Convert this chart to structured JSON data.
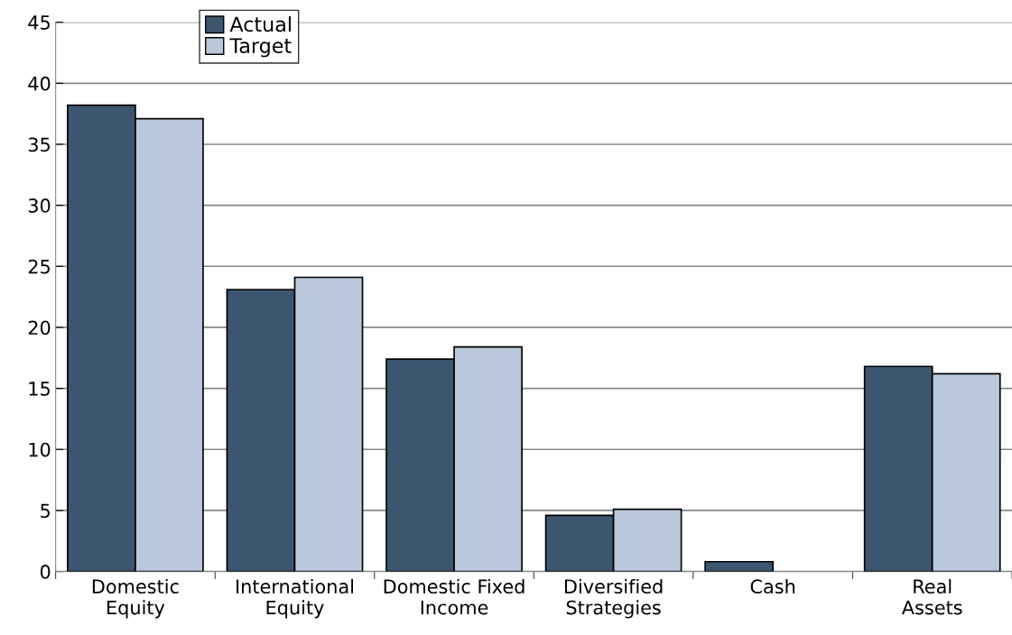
{
  "chart_data": {
    "type": "bar",
    "categories": [
      "Domestic\nEquity",
      "International\nEquity",
      "Domestic Fixed\nIncome",
      "Diversified\nStrategies",
      "Cash",
      "Real\nAssets"
    ],
    "series": [
      {
        "name": "Actual",
        "color": "#3d5670",
        "values": [
          38.2,
          23.1,
          17.4,
          4.6,
          0.8,
          16.8
        ]
      },
      {
        "name": "Target",
        "color": "#b9c8da",
        "values": [
          37.1,
          24.1,
          18.4,
          5.1,
          null,
          16.2
        ]
      }
    ],
    "ylim": [
      0,
      45
    ],
    "yticks": [
      0,
      5,
      10,
      15,
      20,
      25,
      30,
      35,
      40,
      45
    ],
    "grid": "y",
    "legend": "top left"
  }
}
